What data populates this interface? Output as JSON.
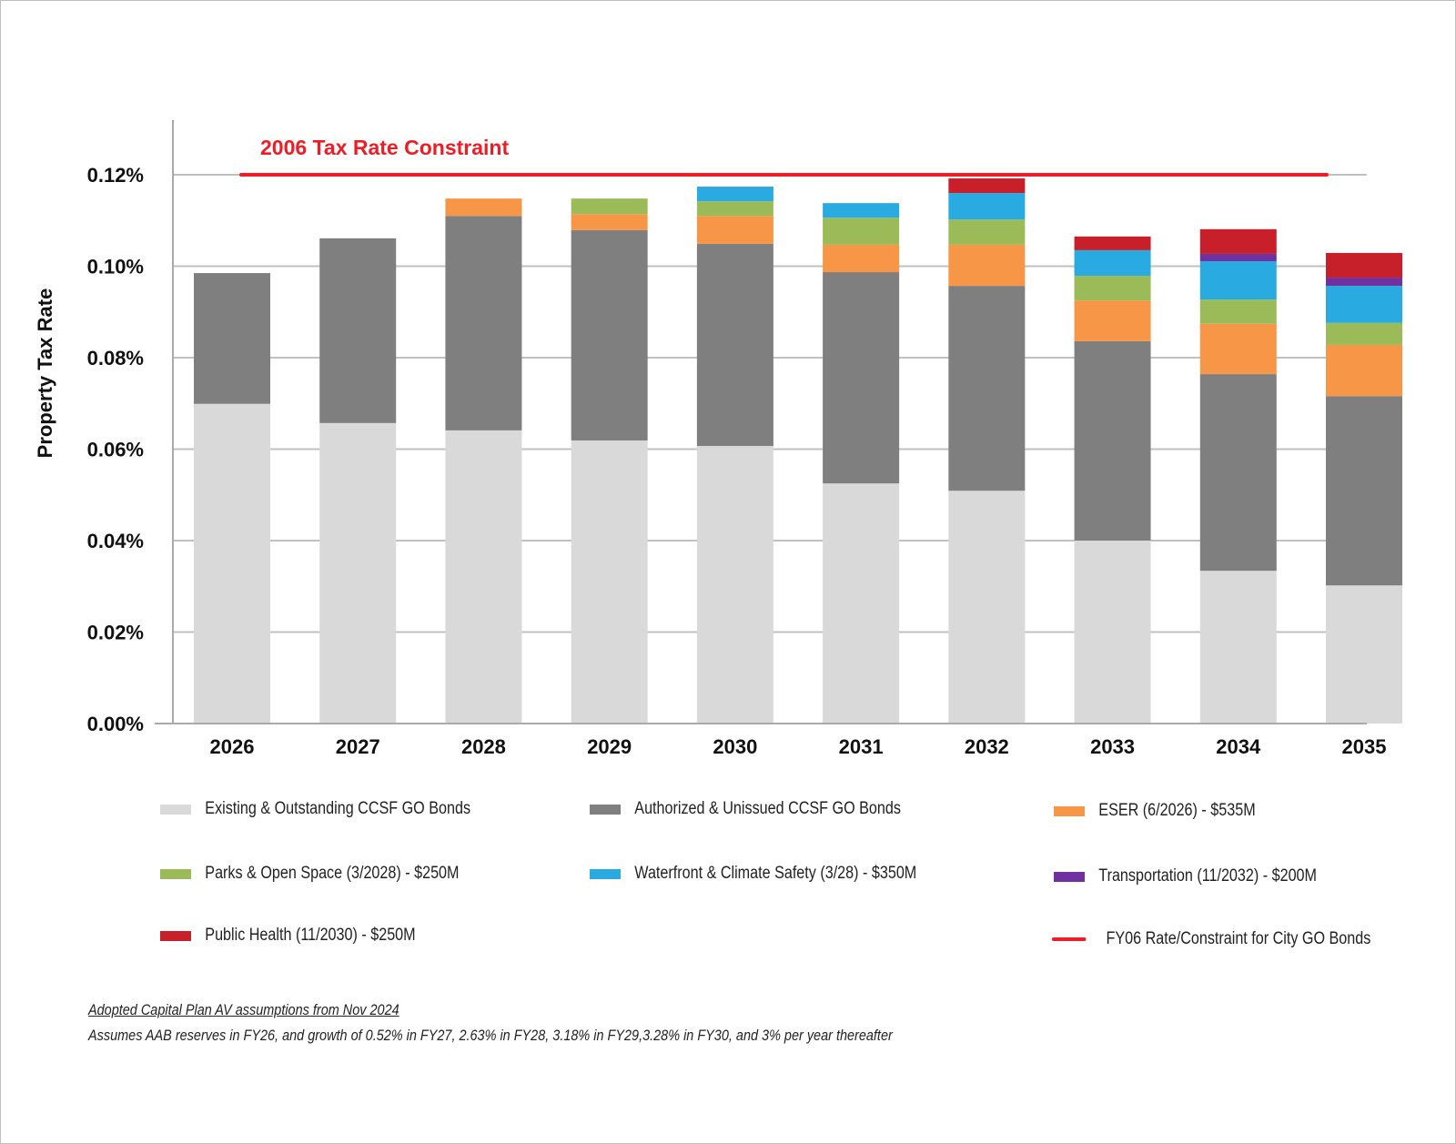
{
  "chart_data": {
    "type": "bar",
    "stacked": true,
    "title": "",
    "xlabel": "",
    "ylabel": "Property Tax Rate",
    "ylim": [
      0,
      0.12
    ],
    "y_unit": "%",
    "y_ticks": [
      "0.00%",
      "0.02%",
      "0.04%",
      "0.06%",
      "0.08%",
      "0.10%",
      "0.12%"
    ],
    "grid": true,
    "legend_placement": "bottom",
    "categories": [
      "2026",
      "2027",
      "2028",
      "2029",
      "2030",
      "2031",
      "2032",
      "2033",
      "2034",
      "2035"
    ],
    "series": [
      {
        "name": "Existing & Outstanding CCSF GO Bonds",
        "color": "#d9d9d9",
        "values": [
          0.0699,
          0.0657,
          0.0641,
          0.0619,
          0.0607,
          0.0525,
          0.0509,
          0.04,
          0.0334,
          0.0302
        ]
      },
      {
        "name": "Authorized & Unissued CCSF GO Bonds",
        "color": "#7f7f7f",
        "values": [
          0.0286,
          0.0404,
          0.0469,
          0.046,
          0.0442,
          0.0462,
          0.0448,
          0.0436,
          0.043,
          0.0414
        ]
      },
      {
        "name": "ESER (6/2026) - $535M",
        "color": "#f79646",
        "values": [
          0,
          0,
          0.0038,
          0.0035,
          0.0061,
          0.006,
          0.009,
          0.0089,
          0.011,
          0.0112
        ]
      },
      {
        "name": "Parks & Open Space (3/2028) - $250M",
        "color": "#9bbb59",
        "values": [
          0,
          0,
          0,
          0.0034,
          0.0032,
          0.0059,
          0.0055,
          0.0054,
          0.0053,
          0.0048
        ]
      },
      {
        "name": "Waterfront & Climate Safety (3/28) - $350M",
        "color": "#29abe2",
        "values": [
          0,
          0,
          0,
          0,
          0.0032,
          0.0032,
          0.0058,
          0.0056,
          0.0084,
          0.0081
        ]
      },
      {
        "name": "Transportation (11/2032) - $200M",
        "color": "#7030a0",
        "values": [
          0,
          0,
          0,
          0,
          0,
          0,
          0,
          0,
          0.0016,
          0.0018
        ]
      },
      {
        "name": "Public Health (11/2030) - $250M",
        "color": "#c8202a",
        "values": [
          0,
          0,
          0,
          0,
          0,
          0,
          0.0032,
          0.003,
          0.0054,
          0.0054
        ]
      }
    ],
    "constraint_line": {
      "name": "FY06 Rate/Constraint for City GO Bonds",
      "label": "2006 Tax Rate Constraint",
      "value": 0.12,
      "color": "#ee1c25"
    }
  },
  "notes": {
    "line1": "Adopted Capital Plan AV assumptions from Nov 2024",
    "line2": "Assumes AAB reserves in FY26, and growth of 0.52% in FY27, 2.63% in FY28, 3.18% in FY29,3.28% in FY30, and 3% per year thereafter"
  }
}
